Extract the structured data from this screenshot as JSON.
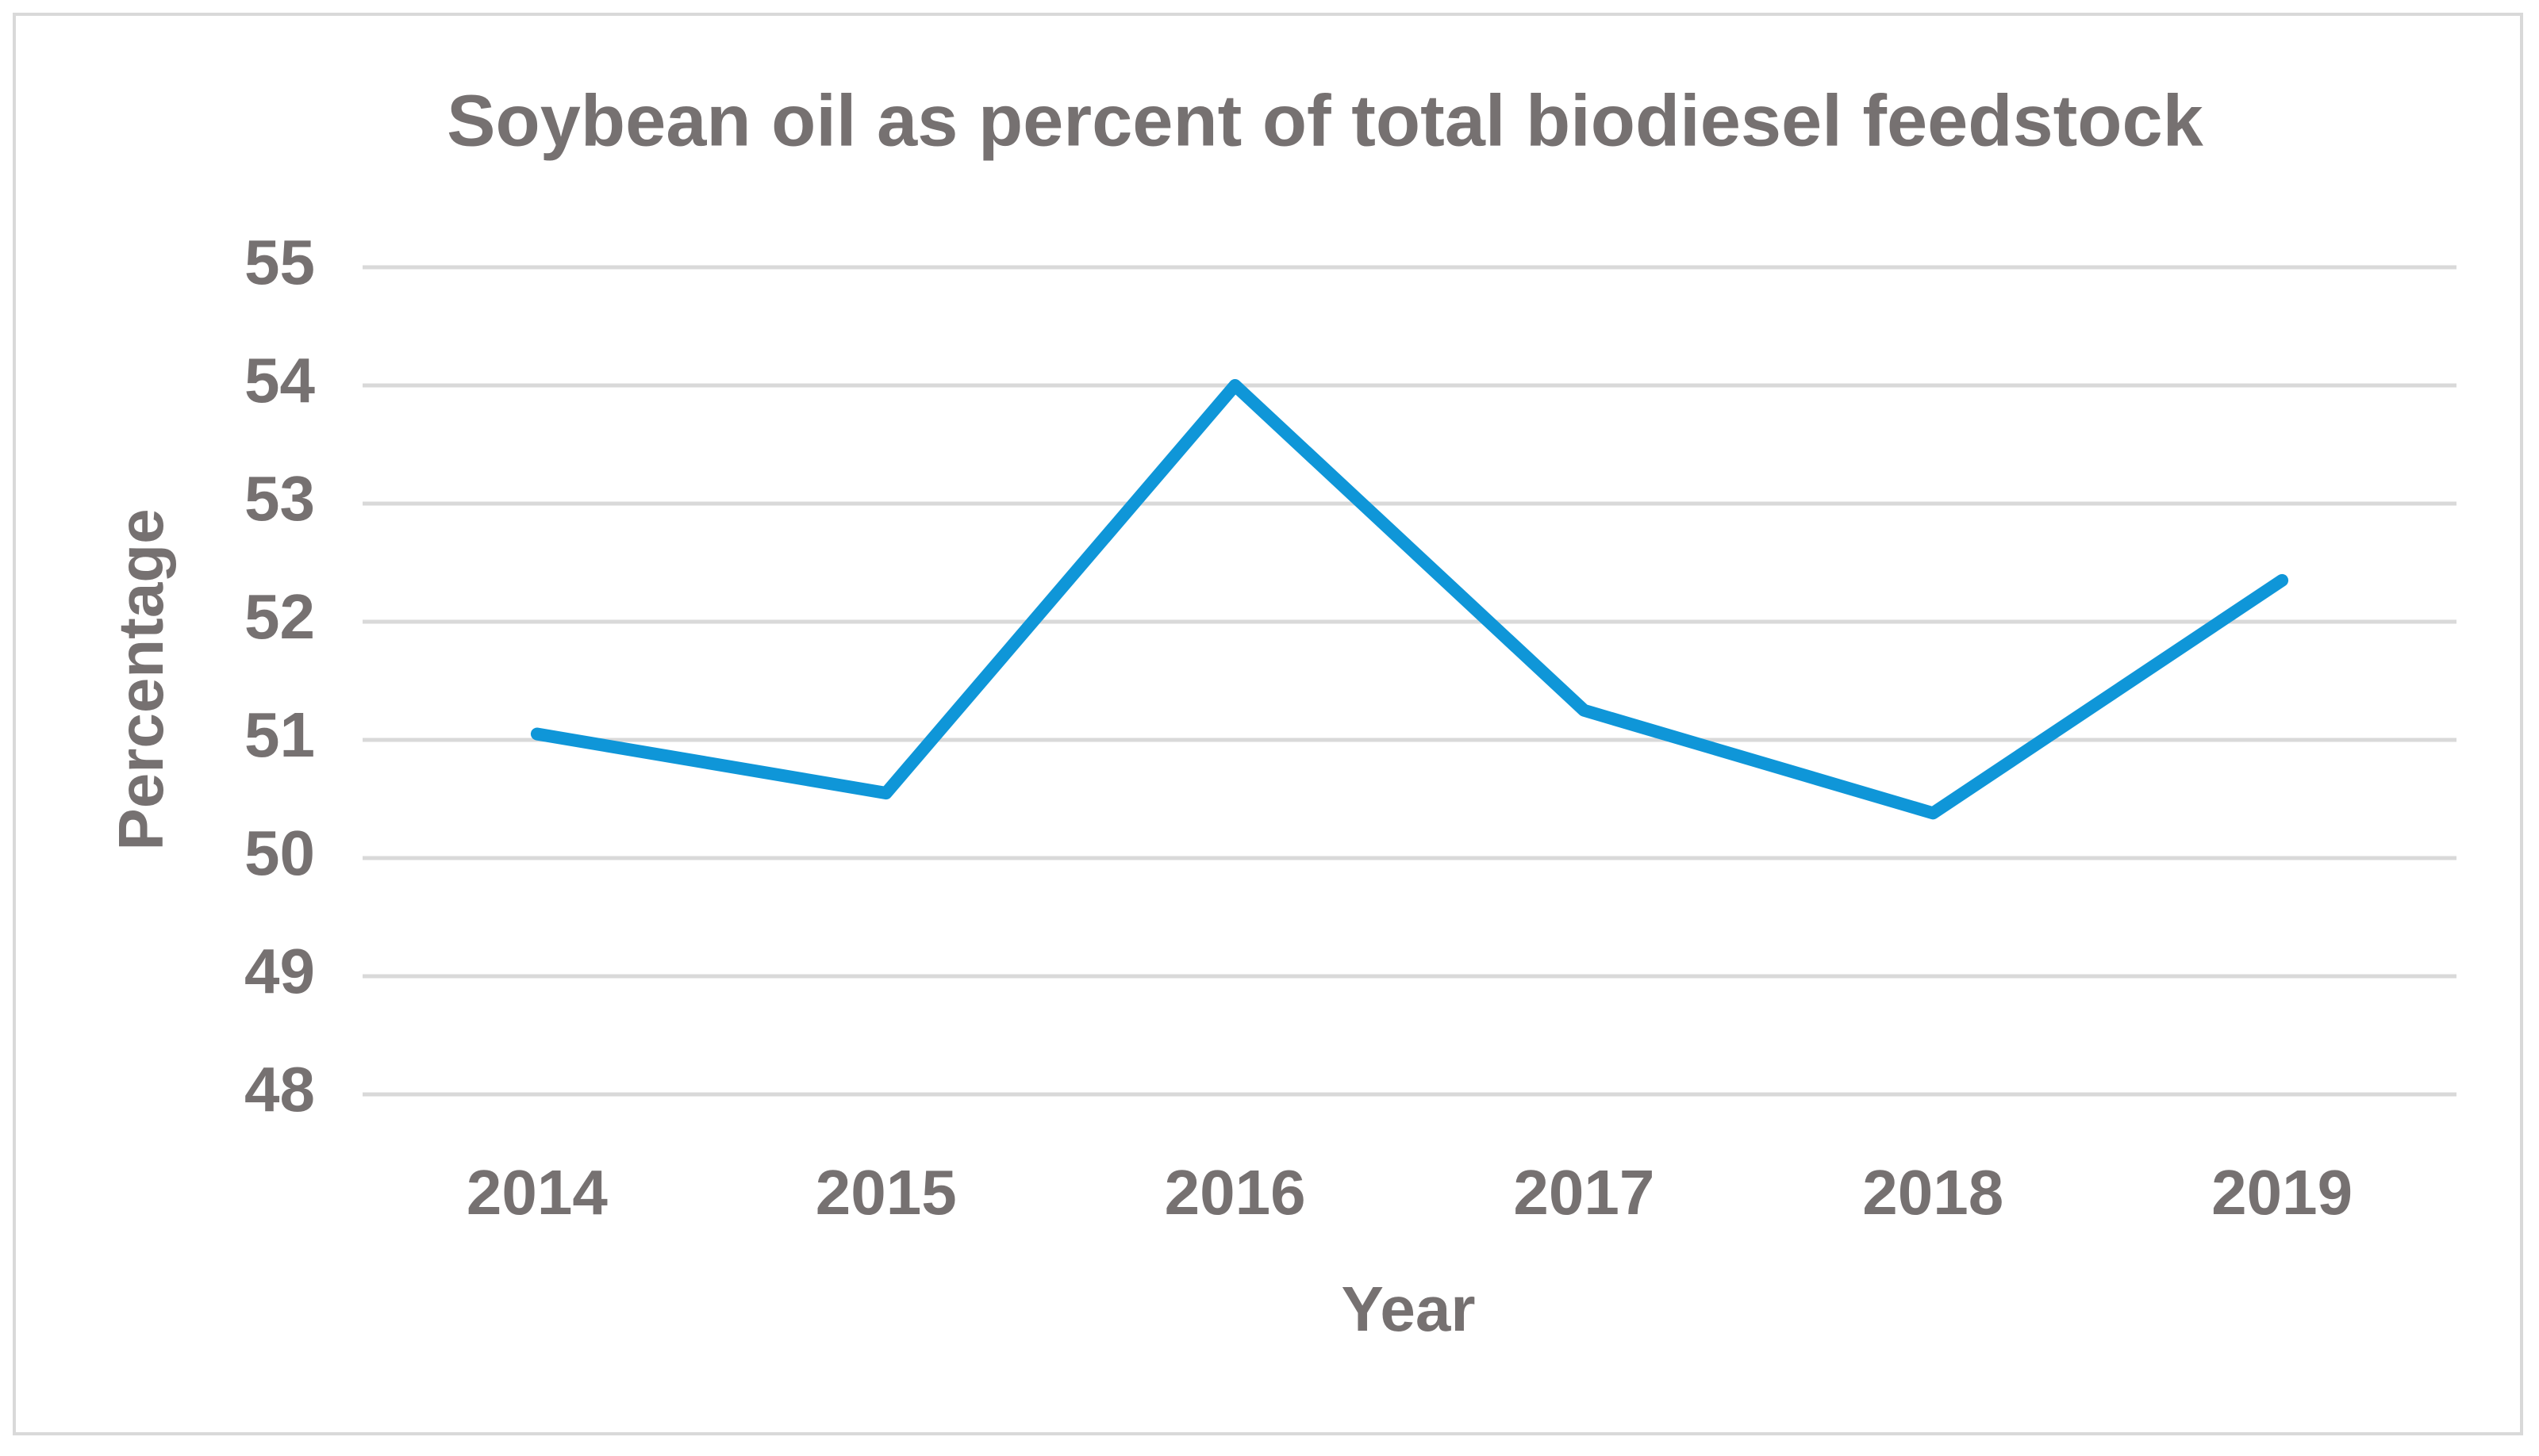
{
  "chart_data": {
    "type": "line",
    "title": "Soybean oil as percent of total biodiesel feedstock",
    "x_label": "Year",
    "y_label": "Percentage",
    "categories": [
      "2014",
      "2015",
      "2016",
      "2017",
      "2018",
      "2019"
    ],
    "series": [
      {
        "name": "Soybean oil",
        "color": "#0f96d8",
        "values": [
          51.05,
          50.55,
          54.0,
          51.25,
          50.38,
          52.35
        ]
      }
    ],
    "ylim": [
      48,
      55
    ],
    "yticks": [
      48,
      49,
      50,
      51,
      52,
      53,
      54,
      55
    ],
    "grid": true
  }
}
